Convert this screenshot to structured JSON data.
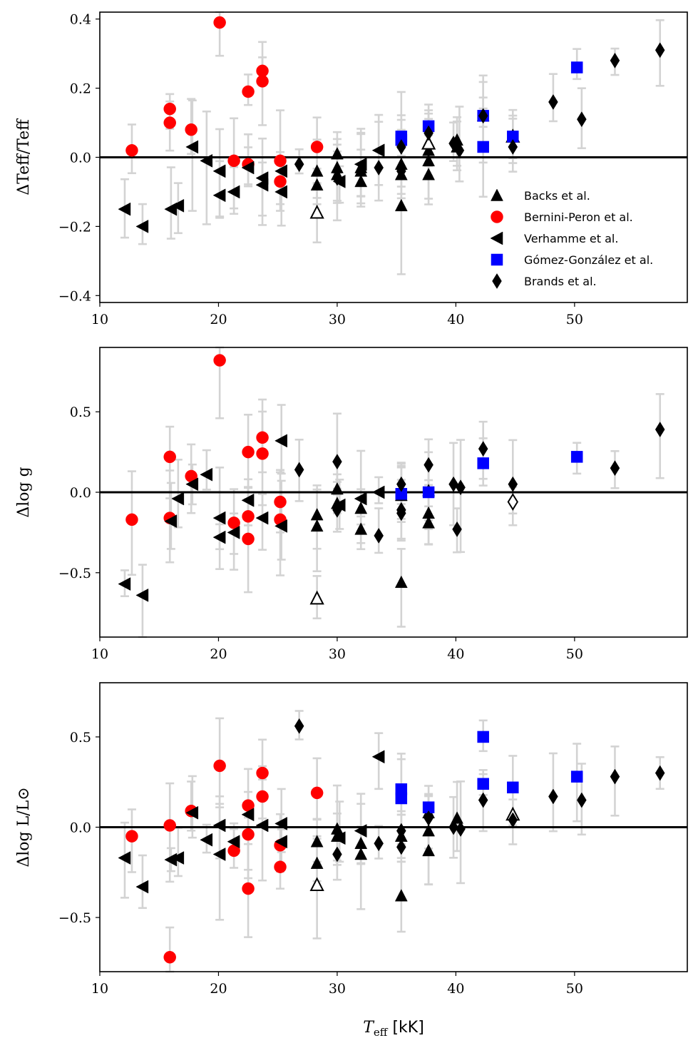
{
  "colors": {
    "backs": "#000000",
    "bernini": "#ff0000",
    "verhamme": "#000000",
    "gomez": "#0000ff",
    "brands": "#000000",
    "errorbar": "#d3d3d3"
  },
  "legend": {
    "backs": "Backs et al.",
    "bernini": "Bernini-Peron et al.",
    "verhamme": "Verhamme et al.",
    "gomez": "Gómez-González et al.",
    "brands": "Brands et al."
  },
  "xlabel_main": "T",
  "xlabel_sub": "eff",
  "xlabel_unit": " [kK]",
  "chart_data": [
    {
      "type": "scatter",
      "title": "",
      "ylabel": "ΔTeff/Teff",
      "xlabel": "",
      "xlim": [
        10,
        59.5
      ],
      "ylim": [
        -0.42,
        0.42
      ],
      "x_ticks": [
        "10",
        "20",
        "30",
        "40",
        "50"
      ],
      "x_tick_values": [
        10,
        20,
        30,
        40,
        50
      ],
      "y_ticks": [
        "0.4",
        "0.2",
        "0.0",
        "−0.2",
        "−0.4"
      ],
      "y_tick_values": [
        0.4,
        0.2,
        0.0,
        -0.2,
        -0.4
      ],
      "series": [
        {
          "name": "Backs et al.",
          "marker": "triangle-up",
          "points": [
            {
              "x": 28.3,
              "y": -0.04
            },
            {
              "x": 28.3,
              "y": -0.08
            },
            {
              "x": 28.3,
              "y": -0.16,
              "open": true
            },
            {
              "x": 30,
              "y": 0.01
            },
            {
              "x": 30,
              "y": -0.03
            },
            {
              "x": 30,
              "y": -0.05
            },
            {
              "x": 32,
              "y": -0.04
            },
            {
              "x": 32,
              "y": -0.07
            },
            {
              "x": 32,
              "y": -0.03
            },
            {
              "x": 35.4,
              "y": -0.02
            },
            {
              "x": 35.4,
              "y": -0.05
            },
            {
              "x": 35.4,
              "y": -0.14
            },
            {
              "x": 37.7,
              "y": 0.02
            },
            {
              "x": 37.7,
              "y": -0.01
            },
            {
              "x": 37.7,
              "y": -0.05
            },
            {
              "x": 37.7,
              "y": 0.04,
              "open": true
            },
            {
              "x": 40.1,
              "y": 0.05
            },
            {
              "x": 40.1,
              "y": 0.03
            },
            {
              "x": 42.3,
              "y": 0.12
            },
            {
              "x": 44.8,
              "y": 0.06,
              "open": true
            }
          ]
        },
        {
          "name": "Bernini-Peron et al.",
          "marker": "circle",
          "points": [
            {
              "x": 12.7,
              "y": 0.02
            },
            {
              "x": 15.9,
              "y": 0.14
            },
            {
              "x": 15.9,
              "y": 0.1
            },
            {
              "x": 17.7,
              "y": 0.08
            },
            {
              "x": 20.1,
              "y": 0.39
            },
            {
              "x": 21.3,
              "y": -0.01
            },
            {
              "x": 22.5,
              "y": 0.19
            },
            {
              "x": 22.5,
              "y": -0.02
            },
            {
              "x": 23.7,
              "y": 0.25
            },
            {
              "x": 23.7,
              "y": 0.22
            },
            {
              "x": 25.2,
              "y": -0.01
            },
            {
              "x": 25.2,
              "y": -0.07
            },
            {
              "x": 28.3,
              "y": 0.03
            }
          ]
        },
        {
          "name": "Verhamme et al.",
          "marker": "triangle-left",
          "points": [
            {
              "x": 12.1,
              "y": -0.15
            },
            {
              "x": 13.6,
              "y": -0.2
            },
            {
              "x": 16.0,
              "y": -0.15
            },
            {
              "x": 16.6,
              "y": -0.14
            },
            {
              "x": 17.8,
              "y": 0.03
            },
            {
              "x": 19.0,
              "y": -0.01
            },
            {
              "x": 20.1,
              "y": -0.04
            },
            {
              "x": 20.1,
              "y": -0.11
            },
            {
              "x": 21.3,
              "y": -0.1
            },
            {
              "x": 22.5,
              "y": -0.03
            },
            {
              "x": 23.7,
              "y": -0.06
            },
            {
              "x": 23.7,
              "y": -0.08
            },
            {
              "x": 25.3,
              "y": -0.04
            },
            {
              "x": 25.3,
              "y": -0.1
            },
            {
              "x": 30.2,
              "y": -0.07
            },
            {
              "x": 32.0,
              "y": -0.02
            },
            {
              "x": 33.5,
              "y": 0.02
            }
          ]
        },
        {
          "name": "Gómez-González et al.",
          "marker": "square",
          "points": [
            {
              "x": 35.4,
              "y": 0.06
            },
            {
              "x": 35.4,
              "y": 0.05
            },
            {
              "x": 37.7,
              "y": 0.09
            },
            {
              "x": 42.3,
              "y": 0.12
            },
            {
              "x": 42.3,
              "y": 0.03
            },
            {
              "x": 44.8,
              "y": 0.06
            },
            {
              "x": 50.2,
              "y": 0.26
            }
          ]
        },
        {
          "name": "Brands et al.",
          "marker": "diamond",
          "points": [
            {
              "x": 26.8,
              "y": -0.02
            },
            {
              "x": 30.0,
              "y": -0.06
            },
            {
              "x": 33.5,
              "y": -0.03
            },
            {
              "x": 35.4,
              "y": 0.03
            },
            {
              "x": 35.4,
              "y": -0.04
            },
            {
              "x": 37.7,
              "y": 0.07
            },
            {
              "x": 39.8,
              "y": 0.04
            },
            {
              "x": 40.3,
              "y": 0.02
            },
            {
              "x": 42.3,
              "y": 0.12
            },
            {
              "x": 44.8,
              "y": 0.03
            },
            {
              "x": 48.2,
              "y": 0.16
            },
            {
              "x": 50.6,
              "y": 0.11
            },
            {
              "x": 53.4,
              "y": 0.28
            },
            {
              "x": 57.2,
              "y": 0.31
            }
          ]
        }
      ]
    },
    {
      "type": "scatter",
      "title": "",
      "ylabel": "Δlog g",
      "xlabel": "",
      "xlim": [
        10,
        59.5
      ],
      "ylim": [
        -0.9,
        0.9
      ],
      "x_ticks": [
        "10",
        "20",
        "30",
        "40",
        "50"
      ],
      "x_tick_values": [
        10,
        20,
        30,
        40,
        50
      ],
      "y_ticks": [
        "0.5",
        "0.0",
        "−0.5"
      ],
      "y_tick_values": [
        0.5,
        0.0,
        -0.5
      ],
      "series": [
        {
          "name": "Backs et al.",
          "marker": "triangle-up",
          "points": [
            {
              "x": 28.3,
              "y": -0.14
            },
            {
              "x": 28.3,
              "y": -0.21
            },
            {
              "x": 28.3,
              "y": -0.66,
              "open": true
            },
            {
              "x": 30,
              "y": 0.02
            },
            {
              "x": 30,
              "y": -0.07
            },
            {
              "x": 32,
              "y": -0.1
            },
            {
              "x": 32,
              "y": -0.23
            },
            {
              "x": 35.4,
              "y": -0.02
            },
            {
              "x": 35.4,
              "y": -0.56
            },
            {
              "x": 37.7,
              "y": -0.13
            },
            {
              "x": 37.7,
              "y": -0.19
            },
            {
              "x": 37.7,
              "y": 0.01
            }
          ]
        },
        {
          "name": "Bernini-Peron et al.",
          "marker": "circle",
          "points": [
            {
              "x": 12.7,
              "y": -0.17
            },
            {
              "x": 15.9,
              "y": 0.22
            },
            {
              "x": 15.9,
              "y": -0.16
            },
            {
              "x": 17.7,
              "y": 0.1
            },
            {
              "x": 20.1,
              "y": 0.82
            },
            {
              "x": 21.3,
              "y": -0.19
            },
            {
              "x": 22.5,
              "y": 0.25
            },
            {
              "x": 22.5,
              "y": -0.15
            },
            {
              "x": 22.5,
              "y": -0.29
            },
            {
              "x": 23.7,
              "y": 0.34
            },
            {
              "x": 23.7,
              "y": 0.24
            },
            {
              "x": 25.2,
              "y": -0.06
            },
            {
              "x": 25.2,
              "y": -0.17
            }
          ]
        },
        {
          "name": "Verhamme et al.",
          "marker": "triangle-left",
          "points": [
            {
              "x": 12.1,
              "y": -0.57
            },
            {
              "x": 13.6,
              "y": -0.64
            },
            {
              "x": 16.0,
              "y": -0.18
            },
            {
              "x": 16.6,
              "y": -0.04
            },
            {
              "x": 17.8,
              "y": 0.05
            },
            {
              "x": 19.0,
              "y": 0.11
            },
            {
              "x": 20.1,
              "y": -0.16
            },
            {
              "x": 20.1,
              "y": -0.28
            },
            {
              "x": 21.3,
              "y": -0.25
            },
            {
              "x": 22.5,
              "y": -0.05
            },
            {
              "x": 23.7,
              "y": -0.16
            },
            {
              "x": 25.3,
              "y": 0.32
            },
            {
              "x": 25.3,
              "y": -0.21
            },
            {
              "x": 30.2,
              "y": -0.08
            },
            {
              "x": 32.0,
              "y": -0.04
            },
            {
              "x": 33.5,
              "y": 0.0
            }
          ]
        },
        {
          "name": "Gómez-González et al.",
          "marker": "square",
          "points": [
            {
              "x": 35.4,
              "y": -0.01
            },
            {
              "x": 37.7,
              "y": 0.0
            },
            {
              "x": 42.3,
              "y": 0.18
            },
            {
              "x": 50.2,
              "y": 0.22
            }
          ]
        },
        {
          "name": "Brands et al.",
          "marker": "diamond",
          "points": [
            {
              "x": 26.8,
              "y": 0.14
            },
            {
              "x": 30.0,
              "y": 0.19
            },
            {
              "x": 30.0,
              "y": -0.11
            },
            {
              "x": 33.5,
              "y": -0.27
            },
            {
              "x": 35.4,
              "y": 0.05
            },
            {
              "x": 35.4,
              "y": -0.11
            },
            {
              "x": 35.4,
              "y": -0.13
            },
            {
              "x": 37.7,
              "y": 0.17
            },
            {
              "x": 39.8,
              "y": 0.05
            },
            {
              "x": 40.1,
              "y": -0.23
            },
            {
              "x": 40.4,
              "y": 0.03
            },
            {
              "x": 42.3,
              "y": 0.27
            },
            {
              "x": 44.8,
              "y": 0.05
            },
            {
              "x": 44.8,
              "y": -0.06,
              "open": true
            },
            {
              "x": 53.4,
              "y": 0.15
            },
            {
              "x": 57.2,
              "y": 0.39
            }
          ]
        }
      ]
    },
    {
      "type": "scatter",
      "title": "",
      "ylabel": "Δlog L/L⊙",
      "xlabel": "Teff [kK]",
      "xlim": [
        10,
        59.5
      ],
      "ylim": [
        -0.8,
        0.8
      ],
      "x_ticks": [
        "10",
        "20",
        "30",
        "40",
        "50"
      ],
      "x_tick_values": [
        10,
        20,
        30,
        40,
        50
      ],
      "y_ticks": [
        "0.5",
        "0.0",
        "−0.5"
      ],
      "y_tick_values": [
        0.5,
        0.0,
        -0.5
      ],
      "series": [
        {
          "name": "Backs et al.",
          "marker": "triangle-up",
          "points": [
            {
              "x": 28.3,
              "y": -0.08
            },
            {
              "x": 28.3,
              "y": -0.2
            },
            {
              "x": 28.3,
              "y": -0.32,
              "open": true
            },
            {
              "x": 30,
              "y": -0.01
            },
            {
              "x": 30,
              "y": -0.05
            },
            {
              "x": 32,
              "y": -0.09
            },
            {
              "x": 32,
              "y": -0.15
            },
            {
              "x": 35.4,
              "y": -0.05
            },
            {
              "x": 35.4,
              "y": -0.38
            },
            {
              "x": 37.7,
              "y": 0.08
            },
            {
              "x": 37.7,
              "y": -0.02
            },
            {
              "x": 37.7,
              "y": -0.13
            },
            {
              "x": 40.1,
              "y": 0.05
            },
            {
              "x": 44.8,
              "y": 0.07,
              "open": true
            }
          ]
        },
        {
          "name": "Bernini-Peron et al.",
          "marker": "circle",
          "points": [
            {
              "x": 12.7,
              "y": -0.05
            },
            {
              "x": 15.9,
              "y": 0.01
            },
            {
              "x": 15.9,
              "y": -0.72
            },
            {
              "x": 17.7,
              "y": 0.09
            },
            {
              "x": 20.1,
              "y": 0.34
            },
            {
              "x": 21.3,
              "y": -0.13
            },
            {
              "x": 22.5,
              "y": 0.12
            },
            {
              "x": 22.5,
              "y": -0.04
            },
            {
              "x": 22.5,
              "y": -0.34
            },
            {
              "x": 23.7,
              "y": 0.3
            },
            {
              "x": 23.7,
              "y": 0.17
            },
            {
              "x": 25.2,
              "y": -0.1
            },
            {
              "x": 25.2,
              "y": -0.22
            },
            {
              "x": 28.3,
              "y": 0.19
            }
          ]
        },
        {
          "name": "Verhamme et al.",
          "marker": "triangle-left",
          "points": [
            {
              "x": 12.1,
              "y": -0.17
            },
            {
              "x": 13.6,
              "y": -0.33
            },
            {
              "x": 16.0,
              "y": -0.18
            },
            {
              "x": 16.6,
              "y": -0.17
            },
            {
              "x": 17.8,
              "y": 0.08
            },
            {
              "x": 19.0,
              "y": -0.07
            },
            {
              "x": 20.1,
              "y": 0.01
            },
            {
              "x": 20.1,
              "y": -0.15
            },
            {
              "x": 21.3,
              "y": -0.08
            },
            {
              "x": 22.5,
              "y": 0.07
            },
            {
              "x": 23.7,
              "y": 0.01
            },
            {
              "x": 25.3,
              "y": 0.02
            },
            {
              "x": 25.3,
              "y": -0.08
            },
            {
              "x": 30.2,
              "y": -0.06
            },
            {
              "x": 32.0,
              "y": -0.02
            },
            {
              "x": 33.5,
              "y": 0.39
            }
          ]
        },
        {
          "name": "Gómez-González et al.",
          "marker": "square",
          "points": [
            {
              "x": 35.4,
              "y": 0.21
            },
            {
              "x": 35.4,
              "y": 0.16
            },
            {
              "x": 37.7,
              "y": 0.11
            },
            {
              "x": 42.3,
              "y": 0.5
            },
            {
              "x": 42.3,
              "y": 0.24
            },
            {
              "x": 44.8,
              "y": 0.22
            },
            {
              "x": 50.2,
              "y": 0.28
            }
          ]
        },
        {
          "name": "Brands et al.",
          "marker": "diamond",
          "points": [
            {
              "x": 26.8,
              "y": 0.56
            },
            {
              "x": 30.0,
              "y": -0.15
            },
            {
              "x": 33.5,
              "y": -0.09
            },
            {
              "x": 35.4,
              "y": -0.02
            },
            {
              "x": 35.4,
              "y": -0.11
            },
            {
              "x": 37.7,
              "y": 0.05
            },
            {
              "x": 39.8,
              "y": 0.0
            },
            {
              "x": 40.4,
              "y": -0.01
            },
            {
              "x": 42.3,
              "y": 0.15
            },
            {
              "x": 44.8,
              "y": 0.04
            },
            {
              "x": 48.2,
              "y": 0.17
            },
            {
              "x": 50.6,
              "y": 0.15
            },
            {
              "x": 53.4,
              "y": 0.28
            },
            {
              "x": 57.2,
              "y": 0.3
            }
          ]
        }
      ]
    }
  ]
}
